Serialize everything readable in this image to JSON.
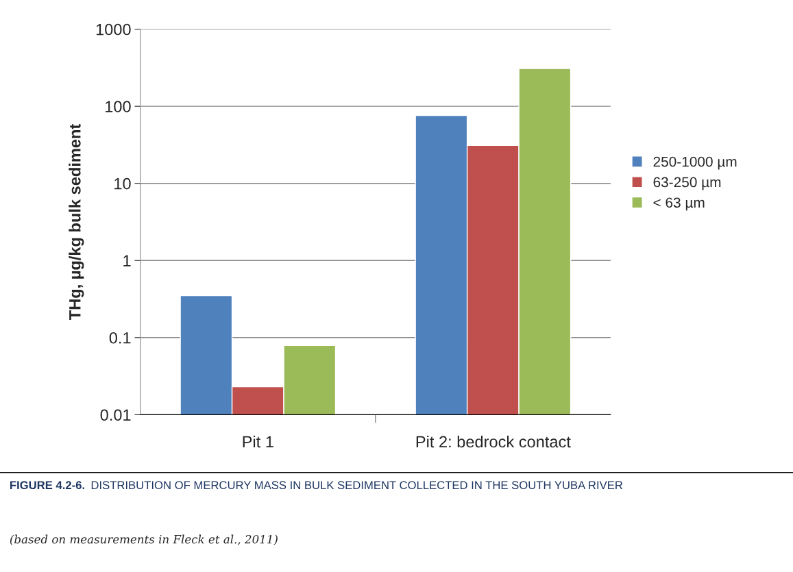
{
  "chart_data": {
    "type": "bar",
    "categories": [
      "Pit 1",
      "Pit 2: bedrock contact"
    ],
    "series": [
      {
        "name": "250-1000 µm",
        "color": "#4f81bd",
        "values": [
          0.35,
          76
        ]
      },
      {
        "name": "63-250 µm",
        "color": "#c0504d",
        "values": [
          0.023,
          31
        ]
      },
      {
        "name": "< 63 µm",
        "color": "#9bbb59",
        "values": [
          0.079,
          308
        ]
      }
    ],
    "ylabel": "THg, µg/kg bulk sediment",
    "log": "y",
    "ylim": [
      0.01,
      1000
    ],
    "yticks": [
      0.01,
      0.1,
      1,
      10,
      100,
      1000
    ],
    "grid": "y",
    "legend": "right",
    "annotations": [
      "FIGURE 4.2-6.",
      "DISTRIBUTION OF MERCURY MASS IN BULK SEDIMENT COLLECTED IN THE SOUTH YUBA RIVER",
      "(based on measurements in Fleck et al., 2011)"
    ]
  }
}
